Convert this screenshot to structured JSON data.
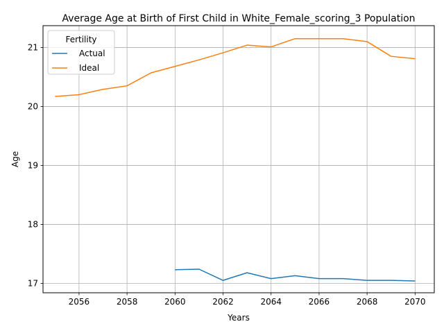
{
  "chart_data": {
    "type": "line",
    "title": "Average Age at Birth of First Child in White_Female_scoring_3 Population",
    "xlabel": "Years",
    "ylabel": "Age",
    "xlim": [
      2054.5,
      2070.8
    ],
    "ylim": [
      16.84,
      21.37
    ],
    "xticks": [
      2056,
      2058,
      2060,
      2062,
      2064,
      2066,
      2068,
      2070
    ],
    "yticks": [
      17,
      18,
      19,
      20,
      21
    ],
    "grid": true,
    "legend": {
      "title": "Fertility",
      "placement": "upper-left"
    },
    "series": [
      {
        "name": "Actual",
        "color": "#1f77b4",
        "x": [
          2060,
          2061,
          2062,
          2063,
          2064,
          2065,
          2066,
          2067,
          2068,
          2069,
          2070
        ],
        "y": [
          17.23,
          17.24,
          17.05,
          17.18,
          17.08,
          17.13,
          17.08,
          17.08,
          17.05,
          17.05,
          17.04
        ]
      },
      {
        "name": "Ideal",
        "color": "#ff7f0e",
        "x": [
          2055,
          2056,
          2057,
          2058,
          2059,
          2060,
          2061,
          2062,
          2063,
          2064,
          2065,
          2066,
          2067,
          2068,
          2069,
          2070
        ],
        "y": [
          20.17,
          20.2,
          20.29,
          20.35,
          20.57,
          20.68,
          20.79,
          20.91,
          21.04,
          21.01,
          21.15,
          21.15,
          21.15,
          21.1,
          20.85,
          20.81
        ]
      }
    ]
  }
}
